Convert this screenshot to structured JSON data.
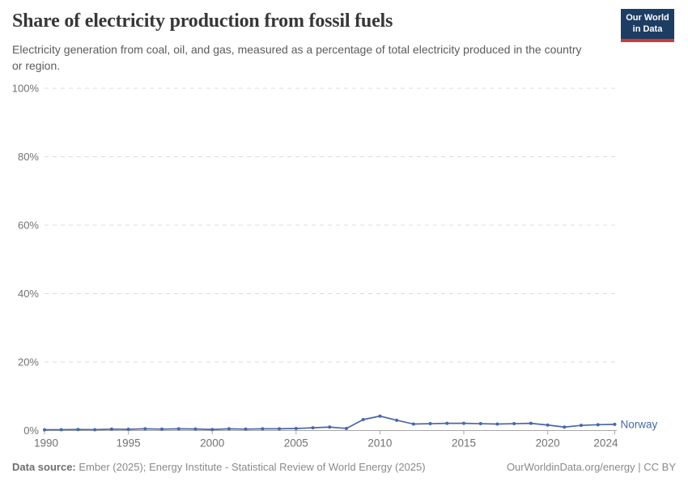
{
  "header": {
    "title": "Share of electricity production from fossil fuels",
    "subtitle": "Electricity generation from coal, oil, and gas, measured as a percentage of total electricity produced in the country or region.",
    "logo_line1": "Our World",
    "logo_line2": "in Data",
    "logo_bg_color": "#1d3d63",
    "logo_accent_color": "#cf3a34"
  },
  "footer": {
    "source_label": "Data source:",
    "source_text": " Ember (2025); Energy Institute - Statistical Review of World Energy (2025)",
    "right_text": "OurWorldinData.org/energy | CC BY"
  },
  "chart_data": {
    "type": "line",
    "title": "Share of electricity production from fossil fuels",
    "xlabel": "",
    "ylabel": "",
    "ylim": [
      0,
      100
    ],
    "yticks": [
      0,
      20,
      40,
      60,
      80,
      100
    ],
    "ytick_suffix": "%",
    "xticks": [
      1990,
      1995,
      2000,
      2005,
      2010,
      2015,
      2020,
      2024
    ],
    "grid": "horizontal-dashed",
    "legend_position": "line-end",
    "axis_color": "#a8a8a8",
    "gridline_color": "#dcdcdc",
    "tick_label_color": "#727272",
    "x": [
      1990,
      1991,
      1992,
      1993,
      1994,
      1995,
      1996,
      1997,
      1998,
      1999,
      2000,
      2001,
      2002,
      2003,
      2004,
      2005,
      2006,
      2007,
      2008,
      2009,
      2010,
      2011,
      2012,
      2013,
      2014,
      2015,
      2016,
      2017,
      2018,
      2019,
      2020,
      2021,
      2022,
      2023,
      2024
    ],
    "series": [
      {
        "name": "Norway",
        "color": "#4868a7",
        "values": [
          0.2,
          0.25,
          0.3,
          0.25,
          0.4,
          0.35,
          0.5,
          0.4,
          0.5,
          0.45,
          0.3,
          0.5,
          0.4,
          0.5,
          0.5,
          0.6,
          0.8,
          1.0,
          0.6,
          3.2,
          4.2,
          3.0,
          1.9,
          2.0,
          2.1,
          2.1,
          2.0,
          1.9,
          2.0,
          2.1,
          1.6,
          1.0,
          1.5,
          1.7,
          1.8
        ]
      }
    ]
  }
}
